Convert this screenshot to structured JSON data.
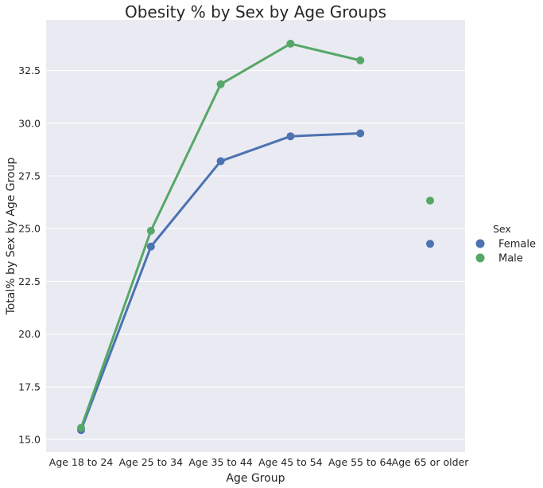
{
  "chart_data": {
    "type": "line",
    "title": "Obesity % by Sex by Age Groups",
    "xlabel": "Age Group",
    "ylabel": "Total% by Sex by Age Group",
    "categories": [
      "Age 18 to 24",
      "Age 25 to 34",
      "Age 35 to 44",
      "Age 45 to 54",
      "Age 55 to 64",
      "Age 65 or older"
    ],
    "yticks": [
      "15.0",
      "17.5",
      "20.0",
      "22.5",
      "25.0",
      "27.5",
      "30.0",
      "32.5"
    ],
    "ylim": [
      14.4,
      34.9
    ],
    "grid": true,
    "legend": {
      "title": "Sex",
      "placement": "right"
    },
    "series": [
      {
        "name": "Female",
        "color": "#4c72b0",
        "values": [
          15.45,
          24.15,
          28.2,
          29.38,
          29.52,
          24.28
        ],
        "connected": [
          true,
          true,
          true,
          true,
          true,
          false
        ]
      },
      {
        "name": "Male",
        "color": "#55a868",
        "values": [
          15.55,
          24.9,
          31.85,
          33.77,
          32.98,
          26.33
        ],
        "connected": [
          true,
          true,
          true,
          true,
          true,
          false
        ]
      }
    ],
    "plot_background": "#eaeaf2",
    "grid_color": "#ffffff"
  }
}
